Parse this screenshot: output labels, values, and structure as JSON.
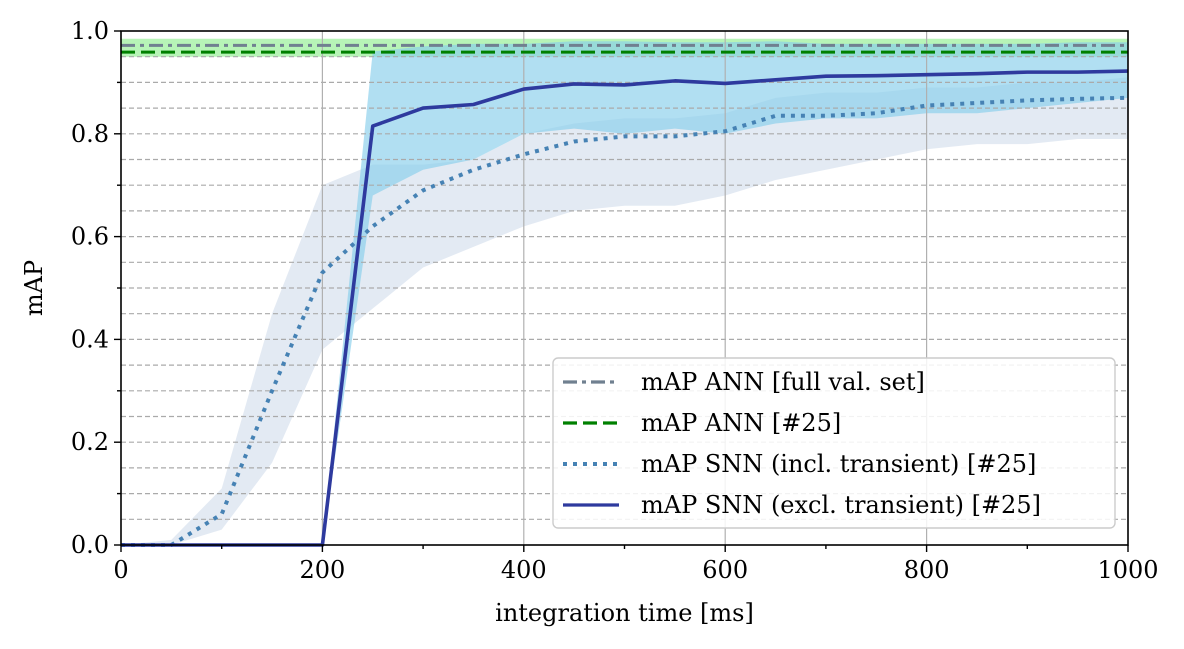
{
  "chart_data": {
    "type": "line",
    "title": "",
    "xlabel": "integration time [ms]",
    "ylabel": "mAP",
    "xlim": [
      0,
      1000
    ],
    "ylim": [
      0.0,
      1.0
    ],
    "xticks": [
      "0",
      "200",
      "400",
      "600",
      "800",
      "1000"
    ],
    "yticks": [
      "0.0",
      "0.2",
      "0.4",
      "0.6",
      "0.8",
      "1.0"
    ],
    "grid": "vertical solid at major x ticks; horizontal dashed every 0.05",
    "legend_position": "lower-right",
    "series": [
      {
        "name": "mAP ANN [full val. set]",
        "style": "dashdot",
        "color": "#708090",
        "x": [
          0,
          1000
        ],
        "y": [
          0.972,
          0.972
        ],
        "band": {
          "lower": [
            0.95,
            0.95
          ],
          "upper": [
            0.985,
            0.985
          ],
          "color": "#90ee90"
        }
      },
      {
        "name": "mAP ANN [#25]",
        "style": "dashed",
        "color": "#008000",
        "x": [
          0,
          1000
        ],
        "y": [
          0.959,
          0.959
        ]
      },
      {
        "name": "mAP SNN (incl. transient) [#25]",
        "style": "dotted",
        "color": "#4682b4",
        "x": [
          0,
          50,
          100,
          150,
          200,
          250,
          300,
          350,
          400,
          450,
          500,
          550,
          600,
          650,
          700,
          750,
          800,
          850,
          900,
          950,
          1000
        ],
        "y": [
          0.0,
          0.0,
          0.06,
          0.3,
          0.53,
          0.62,
          0.69,
          0.73,
          0.76,
          0.785,
          0.795,
          0.795,
          0.805,
          0.835,
          0.835,
          0.84,
          0.855,
          0.86,
          0.865,
          0.868,
          0.87
        ],
        "band": {
          "lower": [
            0.0,
            0.0,
            0.03,
            0.16,
            0.38,
            0.46,
            0.54,
            0.58,
            0.62,
            0.65,
            0.66,
            0.66,
            0.68,
            0.71,
            0.73,
            0.75,
            0.77,
            0.78,
            0.78,
            0.79,
            0.79
          ],
          "upper": [
            0.0,
            0.01,
            0.11,
            0.45,
            0.7,
            0.74,
            0.74,
            0.75,
            0.8,
            0.82,
            0.83,
            0.83,
            0.84,
            0.87,
            0.88,
            0.88,
            0.89,
            0.89,
            0.9,
            0.9,
            0.91
          ],
          "color": "#b0c4de"
        }
      },
      {
        "name": "mAP SNN (excl. transient) [#25]",
        "style": "solid",
        "color": "#2e3a9e",
        "x": [
          0,
          200,
          250,
          300,
          350,
          400,
          450,
          500,
          550,
          600,
          650,
          700,
          750,
          800,
          850,
          900,
          950,
          1000
        ],
        "y": [
          0.0,
          0.0,
          0.815,
          0.85,
          0.857,
          0.887,
          0.897,
          0.895,
          0.903,
          0.898,
          0.905,
          0.912,
          0.913,
          0.915,
          0.917,
          0.92,
          0.92,
          0.922
        ],
        "band": {
          "x": [
            200,
            250,
            300,
            350,
            400,
            450,
            500,
            550,
            600,
            650,
            700,
            750,
            800,
            850,
            900,
            950,
            1000
          ],
          "lower": [
            0.0,
            0.68,
            0.73,
            0.75,
            0.8,
            0.81,
            0.8,
            0.81,
            0.8,
            0.82,
            0.83,
            0.83,
            0.84,
            0.84,
            0.85,
            0.86,
            0.87
          ],
          "upper": [
            0.0,
            0.96,
            0.97,
            0.975,
            0.975,
            0.98,
            0.98,
            0.978,
            0.978,
            0.98,
            0.975,
            0.975,
            0.975,
            0.975,
            0.975,
            0.978,
            0.978
          ],
          "color": "#87ceeb"
        }
      }
    ]
  }
}
